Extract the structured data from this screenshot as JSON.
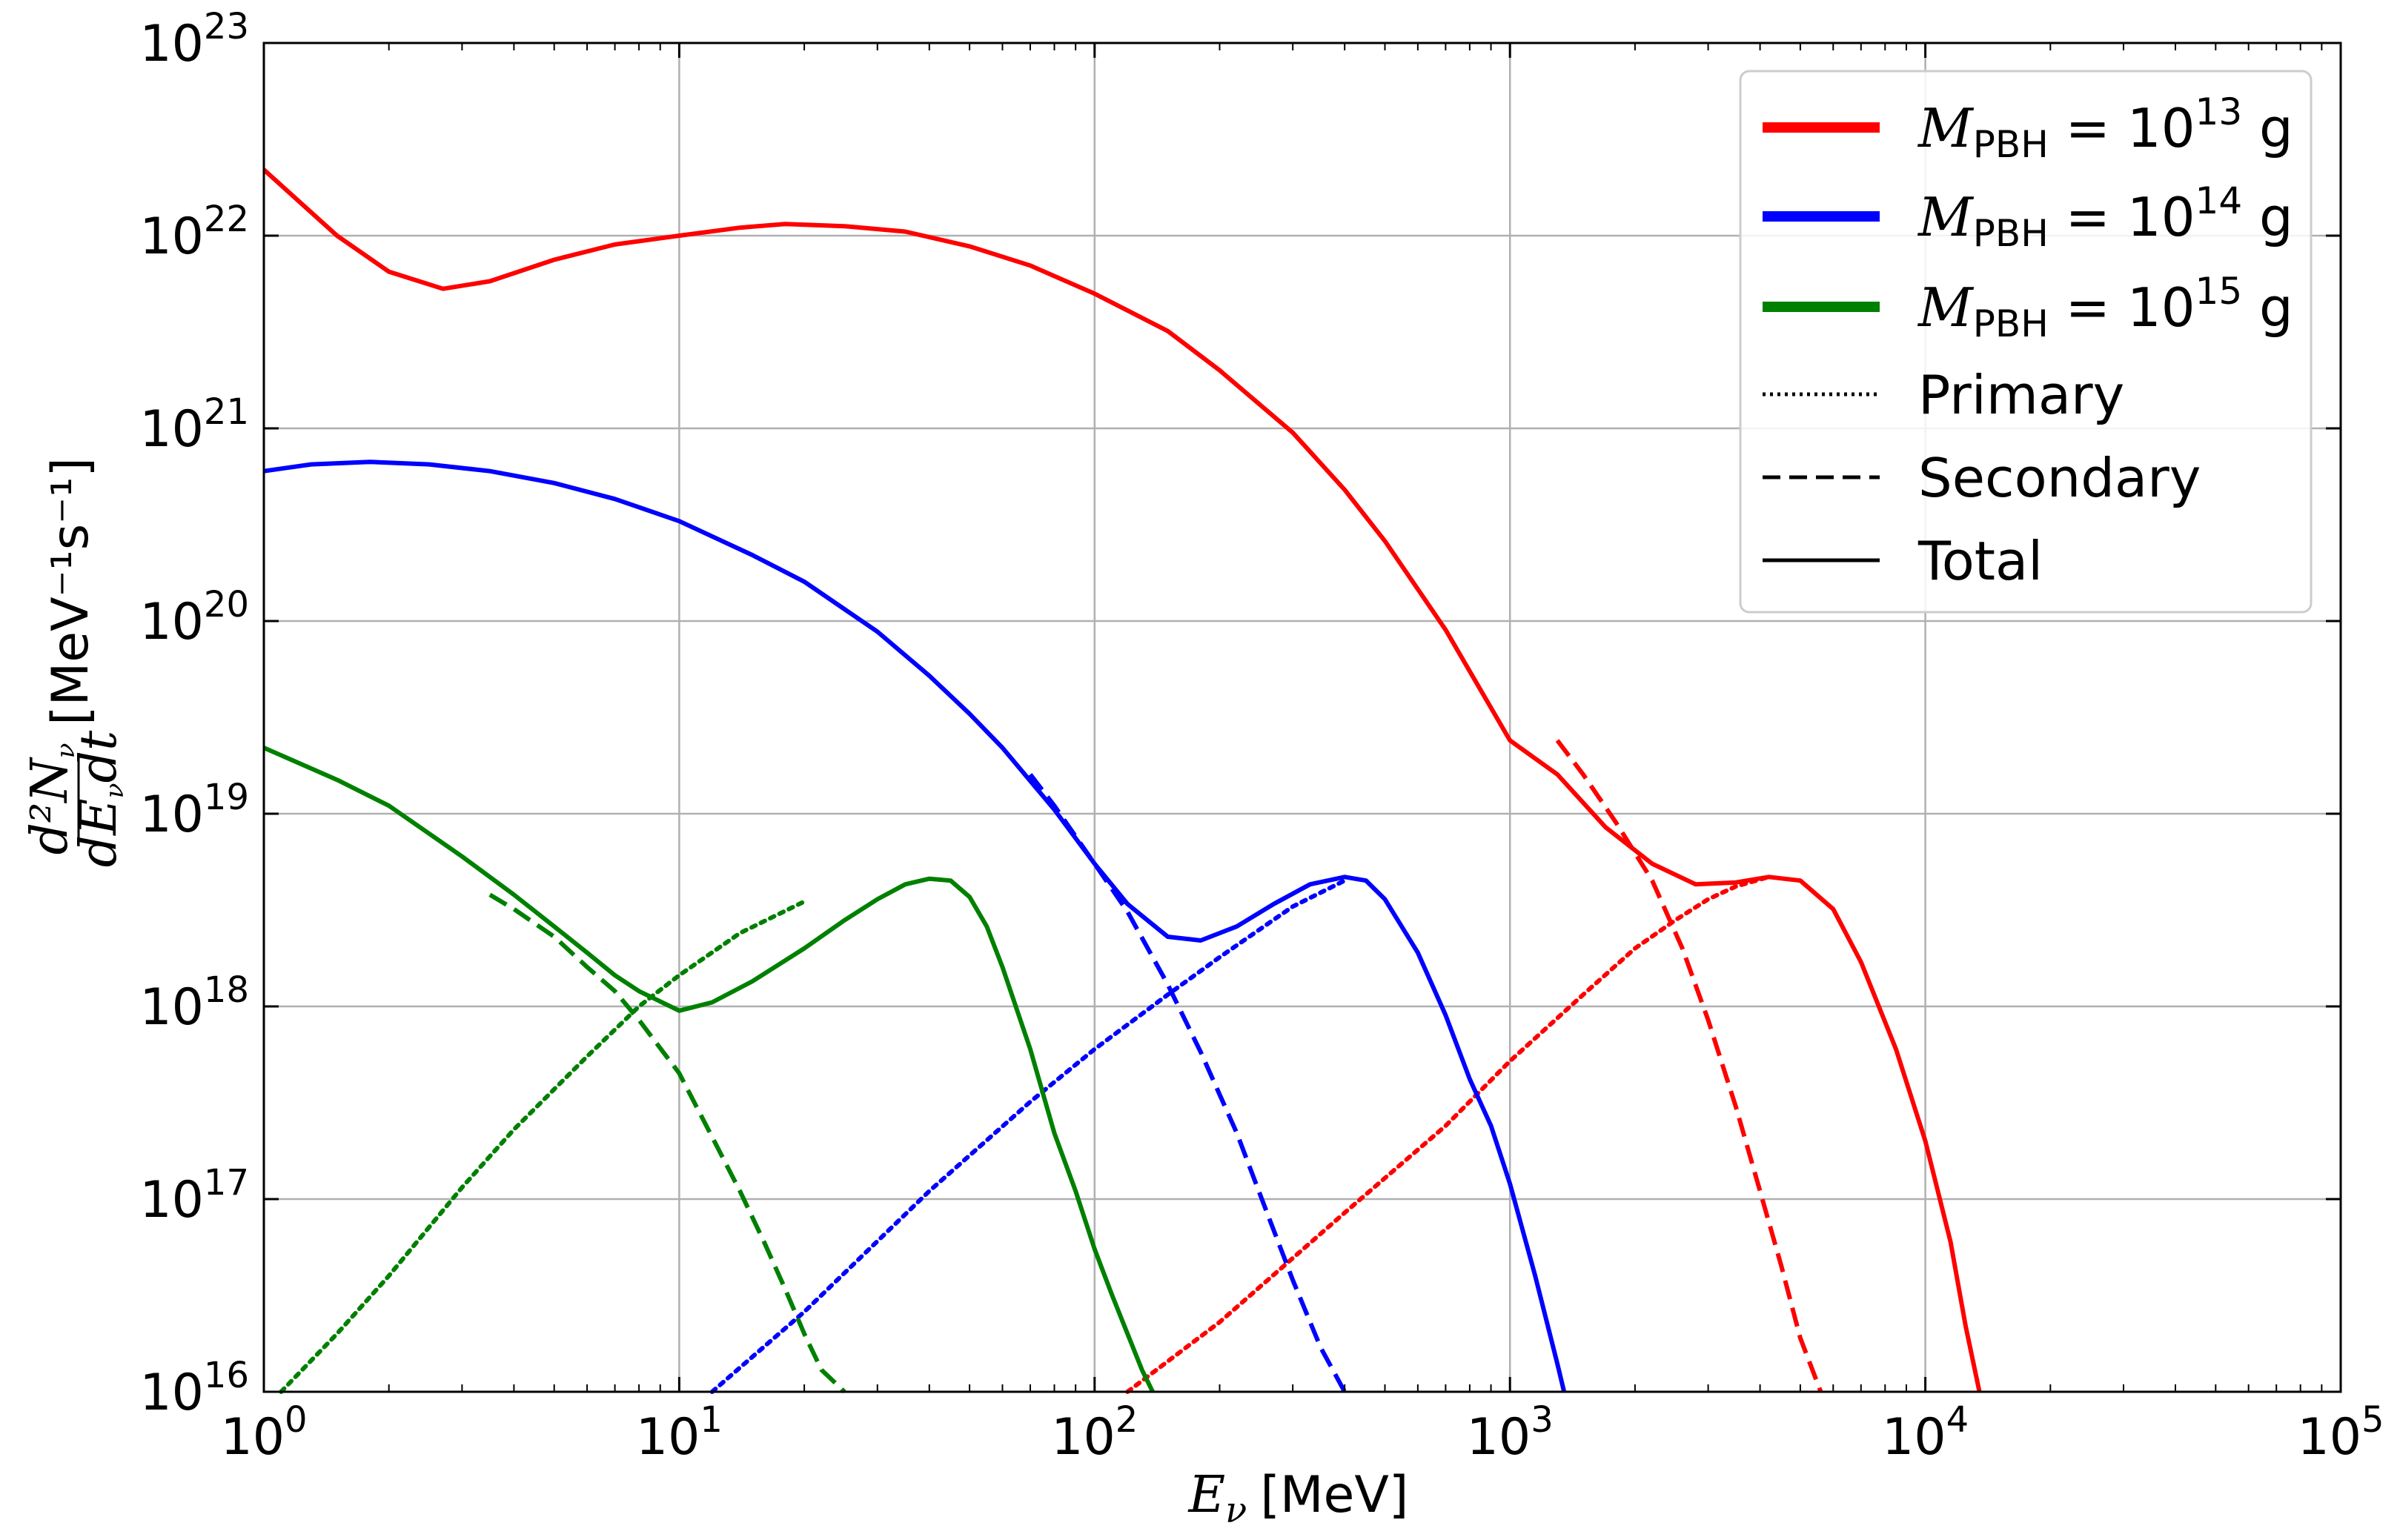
{
  "chart_data": {
    "type": "line",
    "xlabel_symbol": "E",
    "xlabel_sub": "ν",
    "xlabel_unit": "[MeV]",
    "ylabel_frac_num": "d²N",
    "ylabel_frac_num_sub": "ν",
    "ylabel_frac_den": "dE",
    "ylabel_frac_den_sub": "ν",
    "ylabel_frac_den_tail": "dt",
    "ylabel_unit": "[MeV⁻¹s⁻¹]",
    "xscale": "log",
    "yscale": "log",
    "xlim": [
      1,
      100000
    ],
    "ylim": [
      1e+16,
      1e+23
    ],
    "grid": true,
    "legend_position": "top-right",
    "x_ticks": [
      {
        "base": "10",
        "exp": "0"
      },
      {
        "base": "10",
        "exp": "1"
      },
      {
        "base": "10",
        "exp": "2"
      },
      {
        "base": "10",
        "exp": "3"
      },
      {
        "base": "10",
        "exp": "4"
      },
      {
        "base": "10",
        "exp": "5"
      }
    ],
    "y_ticks": [
      {
        "base": "10",
        "exp": "16"
      },
      {
        "base": "10",
        "exp": "17"
      },
      {
        "base": "10",
        "exp": "18"
      },
      {
        "base": "10",
        "exp": "19"
      },
      {
        "base": "10",
        "exp": "20"
      },
      {
        "base": "10",
        "exp": "21"
      },
      {
        "base": "10",
        "exp": "22"
      },
      {
        "base": "10",
        "exp": "23"
      }
    ],
    "legend": [
      {
        "symbol": "M",
        "sub": "PBH",
        "rest": " = 10",
        "exp": "13",
        "unit": " g",
        "color": "#ff0000",
        "style": "solid-thick"
      },
      {
        "symbol": "M",
        "sub": "PBH",
        "rest": " = 10",
        "exp": "14",
        "unit": " g",
        "color": "#0000ff",
        "style": "solid-thick"
      },
      {
        "symbol": "M",
        "sub": "PBH",
        "rest": " = 10",
        "exp": "15",
        "unit": " g",
        "color": "#008000",
        "style": "solid-thick"
      },
      {
        "label": "Primary",
        "color": "#000000",
        "style": "dotted"
      },
      {
        "label": "Secondary",
        "color": "#000000",
        "style": "dashed"
      },
      {
        "label": "Total",
        "color": "#000000",
        "style": "solid"
      }
    ],
    "series": [
      {
        "mass": "1e13 g",
        "component": "total",
        "color": "#ff0000",
        "style": "solid",
        "x": [
          1,
          1.5,
          2,
          2.7,
          3.5,
          5,
          7,
          10,
          14,
          18,
          25,
          35,
          50,
          70,
          100,
          150,
          200,
          300,
          400,
          500,
          700,
          1000,
          1300,
          1700,
          2200,
          2800,
          3500,
          4200,
          5000,
          6000,
          7000,
          8500,
          10000,
          11500,
          12500,
          13500
        ],
        "y": [
          2.2e+22,
          1e+22,
          6.5e+21,
          5.3e+21,
          5.8e+21,
          7.5e+21,
          9e+21,
          1e+22,
          1.1e+22,
          1.15e+22,
          1.12e+22,
          1.05e+22,
          8.8e+21,
          7e+21,
          5e+21,
          3.2e+21,
          2e+21,
          9.5e+20,
          4.8e+20,
          2.6e+20,
          9e+19,
          2.4e+19,
          1.6e+19,
          8.5e+18,
          5.5e+18,
          4.3e+18,
          4.4e+18,
          4.7e+18,
          4.5e+18,
          3.2e+18,
          1.7e+18,
          6e+17,
          2e+17,
          6e+16,
          2.2e+16,
          1e+16
        ]
      },
      {
        "mass": "1e13 g",
        "component": "primary",
        "color": "#ff0000",
        "style": "dotted",
        "x": [
          120,
          200,
          400,
          700,
          1000,
          1500,
          2000,
          2500,
          3000,
          3500,
          4200
        ],
        "y": [
          1e+16,
          2.3e+16,
          8.5e+16,
          2.4e+17,
          5.2e+17,
          1.15e+18,
          2e+18,
          2.8e+18,
          3.6e+18,
          4.2e+18,
          4.7e+18
        ]
      },
      {
        "mass": "1e13 g",
        "component": "secondary",
        "color": "#ff0000",
        "style": "dashed",
        "x": [
          1300,
          1500,
          1800,
          2200,
          2600,
          3000,
          3500,
          4000,
          4500,
          5000,
          5600
        ],
        "y": [
          2.4e+19,
          1.6e+19,
          9e+18,
          4.5e+18,
          2e+18,
          8.5e+17,
          3e+17,
          1.1e+17,
          4.5e+16,
          1.9e+16,
          1e+16
        ]
      },
      {
        "mass": "1e14 g",
        "component": "total",
        "color": "#0000ff",
        "style": "solid",
        "x": [
          1,
          1.3,
          1.8,
          2.5,
          3.5,
          5,
          7,
          10,
          15,
          20,
          30,
          40,
          50,
          60,
          80,
          100,
          120,
          150,
          180,
          220,
          270,
          330,
          400,
          450,
          500,
          600,
          700,
          800,
          900,
          1000,
          1150,
          1300,
          1350
        ],
        "y": [
          6e+20,
          6.5e+20,
          6.7e+20,
          6.5e+20,
          6e+20,
          5.2e+20,
          4.3e+20,
          3.3e+20,
          2.2e+20,
          1.6e+20,
          8.8e+19,
          5.2e+19,
          3.3e+19,
          2.2e+19,
          1.05e+19,
          5.5e+18,
          3.4e+18,
          2.3e+18,
          2.2e+18,
          2.6e+18,
          3.4e+18,
          4.3e+18,
          4.7e+18,
          4.5e+18,
          3.6e+18,
          1.9e+18,
          9e+17,
          4.2e+17,
          2.4e+17,
          1.2e+17,
          4e+16,
          1.4e+16,
          1e+16
        ]
      },
      {
        "mass": "1e14 g",
        "component": "primary",
        "color": "#0000ff",
        "style": "dotted",
        "x": [
          12,
          20,
          40,
          70,
          100,
          150,
          200,
          300,
          400
        ],
        "y": [
          1e+16,
          2.6e+16,
          1.1e+17,
          3.2e+17,
          6e+17,
          1.15e+18,
          1.8e+18,
          3.3e+18,
          4.5e+18
        ]
      },
      {
        "mass": "1e14 g",
        "component": "secondary",
        "color": "#0000ff",
        "style": "dashed",
        "x": [
          70,
          80,
          100,
          120,
          150,
          180,
          220,
          260,
          300,
          350,
          400
        ],
        "y": [
          1.6e+19,
          1.1e+19,
          5.5e+18,
          3.1e+18,
          1.3e+18,
          5.8e+17,
          2.2e+17,
          8.5e+16,
          3.8e+16,
          1.7e+16,
          1e+16
        ]
      },
      {
        "mass": "1e15 g",
        "component": "total",
        "color": "#008000",
        "style": "solid",
        "x": [
          1,
          1.5,
          2,
          3,
          4,
          5,
          6,
          7,
          8,
          10,
          12,
          15,
          20,
          25,
          30,
          35,
          40,
          45,
          50,
          55,
          60,
          70,
          80,
          90,
          100,
          110,
          120,
          130,
          138
        ],
        "y": [
          2.2e+19,
          1.5e+19,
          1.1e+19,
          6e+18,
          3.8e+18,
          2.6e+18,
          1.9e+18,
          1.45e+18,
          1.2e+18,
          9.5e+17,
          1.05e+18,
          1.35e+18,
          2e+18,
          2.8e+18,
          3.6e+18,
          4.3e+18,
          4.6e+18,
          4.5e+18,
          3.7e+18,
          2.6e+18,
          1.6e+18,
          6e+17,
          2.2e+17,
          1.1e+17,
          5.5e+16,
          3.2e+16,
          2e+16,
          1.3e+16,
          1e+16
        ]
      },
      {
        "mass": "1e15 g",
        "component": "primary",
        "color": "#008000",
        "style": "dotted",
        "x": [
          1.1,
          1.5,
          2,
          3,
          4,
          6,
          8,
          10,
          14,
          20
        ],
        "y": [
          1e+16,
          2e+16,
          4e+16,
          1.15e+17,
          2.3e+17,
          5.5e+17,
          1e+18,
          1.45e+18,
          2.4e+18,
          3.5e+18
        ]
      },
      {
        "mass": "1e15 g",
        "component": "secondary",
        "color": "#008000",
        "style": "dashed",
        "x": [
          3.5,
          4,
          5,
          6,
          7,
          8,
          10,
          12,
          14,
          16,
          18,
          20,
          22,
          25
        ],
        "y": [
          3.8e+18,
          3.2e+18,
          2.3e+18,
          1.6e+18,
          1.2e+18,
          8.5e+17,
          4.5e+17,
          2.1e+17,
          1.1e+17,
          6e+16,
          3.4e+16,
          2e+16,
          1.3e+16,
          1e+16
        ]
      }
    ]
  }
}
